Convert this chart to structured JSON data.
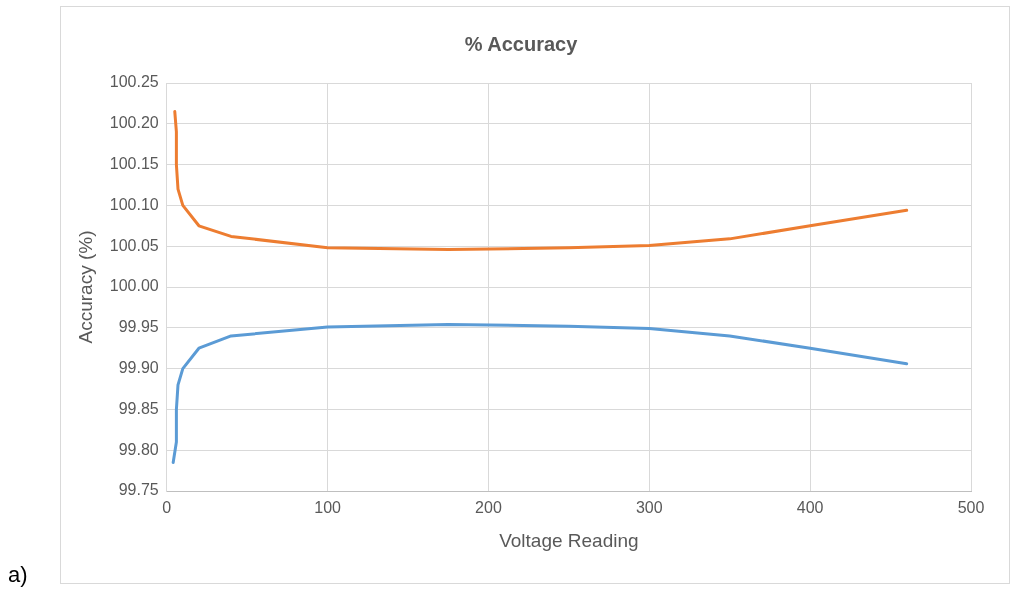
{
  "chart_data": {
    "type": "line",
    "title": "% Accuracy",
    "xlabel": "Voltage Reading",
    "ylabel": "Accuracy (%)",
    "xlim": [
      0,
      500
    ],
    "xticks": [
      0,
      100,
      200,
      300,
      400,
      500
    ],
    "ylim": [
      99.75,
      100.25
    ],
    "yticks": [
      {
        "value": 99.75,
        "label": "99.75"
      },
      {
        "value": 99.8,
        "label": "99.80"
      },
      {
        "value": 99.85,
        "label": "99.85"
      },
      {
        "value": 99.9,
        "label": "99.90"
      },
      {
        "value": 99.95,
        "label": "99.95"
      },
      {
        "value": 100,
        "label": "100.00"
      },
      {
        "value": 100.05,
        "label": "100.05"
      },
      {
        "value": 100.1,
        "label": "100.10"
      },
      {
        "value": 100.15,
        "label": "100.15"
      },
      {
        "value": 100.2,
        "label": "100.20"
      },
      {
        "value": 100.25,
        "label": "100.25"
      }
    ],
    "grid": true,
    "legend": false,
    "marker": "none",
    "line_style": "solid",
    "annotations": [
      "a)"
    ],
    "series": [
      {
        "color": "#ed7d31",
        "x": [
          5,
          6,
          6,
          7,
          10,
          20,
          40,
          100,
          175,
          250,
          300,
          350,
          400,
          460
        ],
        "values": [
          100.215,
          100.19,
          100.15,
          100.12,
          100.1,
          100.075,
          100.062,
          100.048,
          100.046,
          100.048,
          100.051,
          100.059,
          100.075,
          100.094
        ]
      },
      {
        "color": "#5b9bd5",
        "x": [
          4,
          6,
          6,
          7,
          10,
          20,
          40,
          100,
          175,
          250,
          300,
          350,
          400,
          460
        ],
        "values": [
          99.785,
          99.81,
          99.85,
          99.88,
          99.9,
          99.925,
          99.94,
          99.951,
          99.954,
          99.952,
          99.949,
          99.94,
          99.925,
          99.906
        ]
      }
    ]
  }
}
